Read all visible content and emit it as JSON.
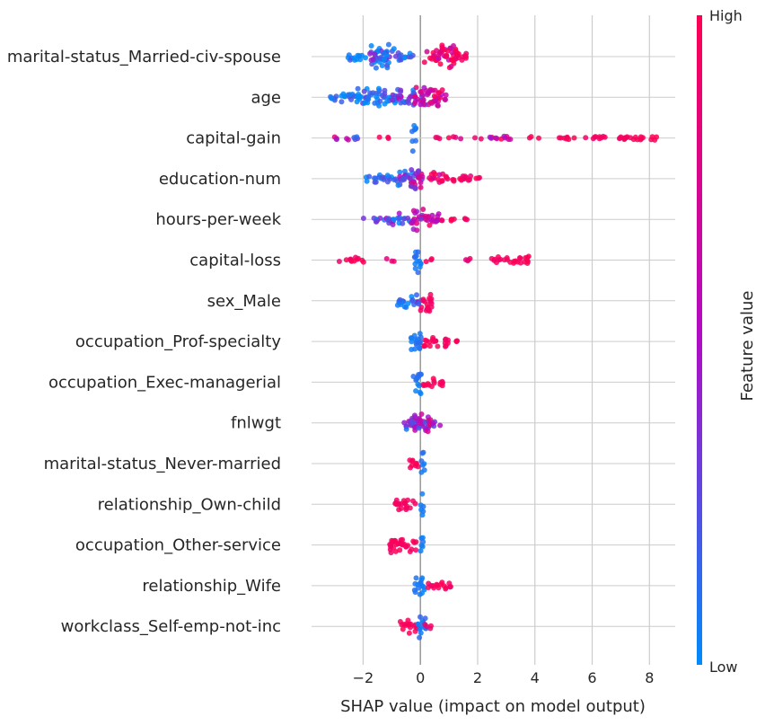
{
  "chart_data": {
    "type": "scatter",
    "subtype": "beeswarm",
    "xlabel": "SHAP value (impact on model output)",
    "xlim": [
      -3.8,
      8.9
    ],
    "xticks": [
      -2,
      0,
      2,
      4,
      6,
      8
    ],
    "xtick_labels": [
      "−2",
      "0",
      "2",
      "4",
      "6",
      "8"
    ],
    "grid": true,
    "colorbar": {
      "label": "Feature value",
      "high_label": "High",
      "low_label": "Low",
      "low_color": "#008bfb",
      "mid_color": "#b10bc6",
      "high_color": "#ff0052"
    },
    "features": [
      {
        "name": "marital-status_Married-civ-spouse",
        "clusters": [
          [
            -2.6,
            -1.9,
            0.35,
            0.05,
            0.25
          ],
          [
            -1.8,
            -0.9,
            1.0,
            0.1,
            0.35
          ],
          [
            -0.9,
            -0.2,
            0.35,
            0.15,
            0.2
          ],
          [
            0.1,
            0.55,
            0.5,
            0.9,
            0.25
          ],
          [
            0.55,
            1.3,
            1.0,
            0.9,
            0.4
          ],
          [
            1.3,
            1.8,
            0.35,
            0.95,
            0.15
          ]
        ]
      },
      {
        "name": "age",
        "clusters": [
          [
            -3.3,
            -2.2,
            0.35,
            0.05,
            0.2
          ],
          [
            -2.2,
            -0.8,
            0.7,
            0.1,
            0.3
          ],
          [
            -0.8,
            -0.2,
            0.75,
            0.35,
            0.3
          ],
          [
            -0.2,
            0.3,
            0.9,
            0.55,
            0.3
          ],
          [
            0.3,
            0.8,
            0.8,
            0.75,
            0.25
          ],
          [
            0.8,
            1.0,
            0.3,
            0.7,
            0.1
          ]
        ]
      },
      {
        "name": "capital-gain",
        "clusters": [
          [
            -3.1,
            -2.5,
            0.15,
            0.7,
            0.3
          ],
          [
            -2.5,
            -2.0,
            0.15,
            0.2,
            0.2
          ],
          [
            -1.5,
            -1.1,
            0.12,
            0.85,
            0.15
          ],
          [
            -0.3,
            -0.15,
            1.0,
            0.08,
            0.05
          ],
          [
            0.4,
            1.5,
            0.12,
            0.88,
            0.15
          ],
          [
            1.6,
            3.3,
            0.15,
            0.75,
            0.3
          ],
          [
            3.8,
            4.2,
            0.1,
            0.95,
            0.05
          ],
          [
            4.7,
            8.3,
            0.2,
            0.96,
            0.05
          ]
        ]
      },
      {
        "name": "education-num",
        "clusters": [
          [
            -2.0,
            -0.8,
            0.35,
            0.1,
            0.2
          ],
          [
            -0.8,
            -0.2,
            0.7,
            0.3,
            0.3
          ],
          [
            -0.4,
            0.1,
            0.85,
            0.55,
            0.3
          ],
          [
            0.3,
            0.8,
            0.5,
            0.85,
            0.25
          ],
          [
            0.8,
            2.1,
            0.3,
            0.95,
            0.1
          ]
        ]
      },
      {
        "name": "hours-per-week",
        "clusters": [
          [
            -2.0,
            -1.2,
            0.2,
            0.2,
            0.2
          ],
          [
            -1.2,
            -0.3,
            0.45,
            0.25,
            0.3
          ],
          [
            -0.3,
            0.1,
            0.85,
            0.55,
            0.3
          ],
          [
            0.1,
            0.7,
            0.55,
            0.75,
            0.25
          ],
          [
            0.7,
            1.2,
            0.25,
            0.9,
            0.1
          ],
          [
            1.5,
            1.7,
            0.1,
            0.95,
            0.05
          ]
        ]
      },
      {
        "name": "capital-loss",
        "clusters": [
          [
            -2.9,
            -1.7,
            0.2,
            0.92,
            0.1
          ],
          [
            -1.2,
            -0.8,
            0.12,
            0.8,
            0.15
          ],
          [
            -0.2,
            0.05,
            1.0,
            0.08,
            0.05
          ],
          [
            0.15,
            0.6,
            0.15,
            0.85,
            0.15
          ],
          [
            1.2,
            1.8,
            0.12,
            0.85,
            0.15
          ],
          [
            2.4,
            3.8,
            0.35,
            0.96,
            0.05
          ]
        ]
      },
      {
        "name": "sex_Male",
        "clusters": [
          [
            -0.8,
            -0.1,
            0.55,
            0.08,
            0.1
          ],
          [
            -0.1,
            0.05,
            0.5,
            0.3,
            0.2
          ],
          [
            0.0,
            0.4,
            0.9,
            0.95,
            0.05
          ]
        ]
      },
      {
        "name": "occupation_Prof-specialty",
        "clusters": [
          [
            -0.35,
            0.05,
            0.9,
            0.08,
            0.05
          ],
          [
            0.1,
            1.0,
            0.45,
            0.95,
            0.05
          ],
          [
            1.1,
            1.3,
            0.1,
            0.95,
            0.05
          ]
        ]
      },
      {
        "name": "occupation_Exec-managerial",
        "clusters": [
          [
            -0.25,
            0.05,
            0.9,
            0.08,
            0.05
          ],
          [
            0.1,
            0.8,
            0.4,
            0.95,
            0.05
          ]
        ]
      },
      {
        "name": "fnlwgt",
        "clusters": [
          [
            -0.6,
            -0.15,
            0.5,
            0.3,
            0.3
          ],
          [
            -0.3,
            0.3,
            1.0,
            0.5,
            0.35
          ],
          [
            0.2,
            0.7,
            0.45,
            0.6,
            0.35
          ]
        ]
      },
      {
        "name": "marital-status_Never-married",
        "clusters": [
          [
            -0.5,
            -0.05,
            0.4,
            0.95,
            0.05
          ],
          [
            0.0,
            0.15,
            0.9,
            0.08,
            0.05
          ]
        ]
      },
      {
        "name": "relationship_Own-child",
        "clusters": [
          [
            -0.9,
            -0.1,
            0.5,
            0.95,
            0.05
          ],
          [
            0.0,
            0.12,
            0.9,
            0.06,
            0.04
          ]
        ]
      },
      {
        "name": "occupation_Other-service",
        "clusters": [
          [
            -1.1,
            -0.1,
            0.6,
            0.95,
            0.05
          ],
          [
            0.0,
            0.12,
            0.9,
            0.06,
            0.04
          ]
        ]
      },
      {
        "name": "relationship_Wife",
        "clusters": [
          [
            -0.2,
            0.15,
            0.9,
            0.06,
            0.04
          ],
          [
            0.2,
            1.1,
            0.35,
            0.95,
            0.05
          ]
        ]
      },
      {
        "name": "workclass_Self-emp-not-inc",
        "clusters": [
          [
            -0.7,
            -0.1,
            0.55,
            0.95,
            0.05
          ],
          [
            -0.1,
            0.2,
            0.9,
            0.1,
            0.06
          ],
          [
            0.15,
            0.4,
            0.3,
            0.9,
            0.06
          ]
        ]
      }
    ]
  }
}
